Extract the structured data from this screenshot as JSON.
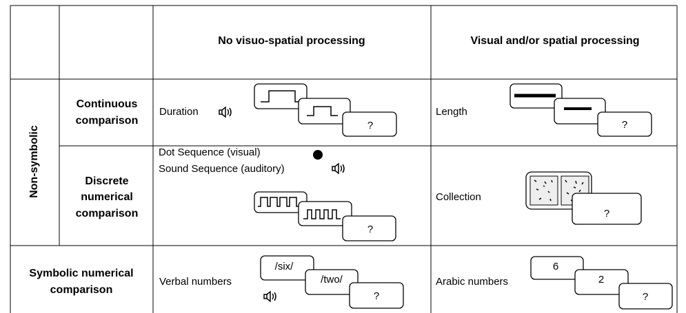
{
  "header": {
    "col1": "No visuo-spatial processing",
    "col2": "Visual and/or spatial processing"
  },
  "group": "Non-symbolic",
  "rows": [
    {
      "label_lines": [
        "Continuous",
        "comparison"
      ],
      "left": {
        "label": "Duration",
        "boxes": [
          "?"
        ]
      },
      "right": {
        "label": "Length",
        "boxes": [
          "?"
        ]
      }
    },
    {
      "label_lines": [
        "Discrete",
        "numerical",
        "comparison"
      ],
      "left": {
        "label_lines": [
          "Dot Sequence (visual)",
          "Sound Sequence (auditory)"
        ],
        "boxes": [
          "?"
        ]
      },
      "right": {
        "label": "Collection",
        "boxes": [
          "?"
        ]
      }
    },
    {
      "label_lines": [
        "Symbolic numerical",
        "comparison"
      ],
      "left": {
        "label": "Verbal numbers",
        "boxes": [
          "/six/",
          "/two/",
          "?"
        ]
      },
      "right": {
        "label": "Arabic numbers",
        "boxes": [
          "6",
          "2",
          "?"
        ]
      }
    }
  ]
}
